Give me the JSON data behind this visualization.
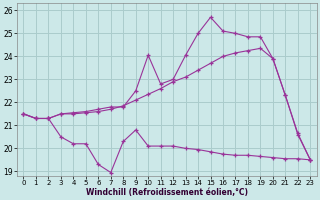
{
  "xlabel": "Windchill (Refroidissement éolien,°C)",
  "xlim": [
    -0.5,
    23.5
  ],
  "ylim": [
    18.8,
    26.3
  ],
  "yticks": [
    19,
    20,
    21,
    22,
    23,
    24,
    25,
    26
  ],
  "xticks": [
    0,
    1,
    2,
    3,
    4,
    5,
    6,
    7,
    8,
    9,
    10,
    11,
    12,
    13,
    14,
    15,
    16,
    17,
    18,
    19,
    20,
    21,
    22,
    23
  ],
  "bg_color": "#cce8e8",
  "line_color": "#993399",
  "grid_color": "#aacccc",
  "series1_x": [
    0,
    1,
    2,
    3,
    4,
    5,
    6,
    7,
    8,
    9,
    10,
    11,
    12,
    13,
    14,
    15,
    16,
    17,
    18,
    19,
    20,
    21,
    22,
    23
  ],
  "series1_y": [
    21.5,
    21.3,
    21.3,
    20.5,
    20.2,
    20.2,
    19.3,
    18.95,
    20.3,
    20.8,
    20.1,
    20.1,
    20.1,
    20.0,
    19.95,
    19.85,
    19.75,
    19.7,
    19.7,
    19.65,
    19.6,
    19.55,
    19.55,
    19.5
  ],
  "series2_x": [
    0,
    1,
    2,
    3,
    4,
    5,
    6,
    7,
    8,
    9,
    10,
    11,
    12,
    13,
    14,
    15,
    16,
    17,
    18,
    19,
    20,
    21,
    22,
    23
  ],
  "series2_y": [
    21.5,
    21.3,
    21.3,
    21.5,
    21.5,
    21.55,
    21.6,
    21.7,
    21.85,
    22.1,
    22.35,
    22.6,
    22.9,
    23.1,
    23.4,
    23.7,
    24.0,
    24.15,
    24.25,
    24.35,
    23.9,
    22.3,
    20.6,
    19.5
  ],
  "series3_x": [
    0,
    1,
    2,
    3,
    4,
    5,
    6,
    7,
    8,
    9,
    10,
    11,
    12,
    13,
    14,
    15,
    16,
    17,
    18,
    19,
    20,
    21,
    22,
    23
  ],
  "series3_y": [
    21.5,
    21.3,
    21.3,
    21.5,
    21.55,
    21.6,
    21.7,
    21.8,
    21.8,
    22.5,
    24.05,
    22.8,
    23.0,
    24.05,
    25.0,
    25.7,
    25.1,
    25.0,
    24.85,
    24.85,
    23.9,
    22.3,
    20.65,
    19.5
  ]
}
